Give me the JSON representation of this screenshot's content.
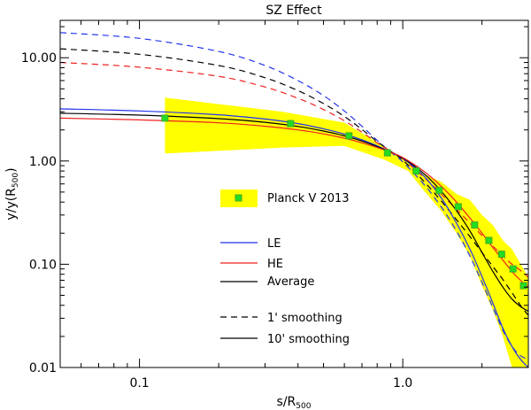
{
  "chart_data": {
    "type": "line",
    "title": "SZ Effect",
    "xlabel": "s/R",
    "xlabel_sub": "500",
    "ylabel": "y/y(R",
    "ylabel_sub": "500",
    "ylabel_end": ")",
    "xscale": "log",
    "yscale": "log",
    "xlim": [
      0.05,
      3.0
    ],
    "ylim": [
      0.01,
      23
    ],
    "x_ticks": [
      {
        "value": 0.1,
        "label": "0.1"
      },
      {
        "value": 1.0,
        "label": "1.0"
      }
    ],
    "y_ticks": [
      {
        "value": 0.01,
        "label": "0.01"
      },
      {
        "value": 0.1,
        "label": "0.10"
      },
      {
        "value": 1.0,
        "label": "1.00"
      },
      {
        "value": 10.0,
        "label": "10.00"
      }
    ],
    "colors": {
      "LE": "#2233ee",
      "HE": "#ee2222",
      "Average": "#000000",
      "band": "#ffff00",
      "points": "#22dd22",
      "point_edge": "#44aa22"
    },
    "observations": {
      "name": "Planck V 2013",
      "band": [
        {
          "x": 0.125,
          "lo": 1.18,
          "hi": 4.1
        },
        {
          "x": 0.35,
          "lo": 1.35,
          "hi": 3.0
        },
        {
          "x": 0.6,
          "lo": 1.4,
          "hi": 2.35
        },
        {
          "x": 0.85,
          "lo": 1.03,
          "hi": 1.38
        },
        {
          "x": 1.05,
          "lo": 0.8,
          "hi": 0.98
        },
        {
          "x": 1.2,
          "lo": 0.52,
          "hi": 0.75
        },
        {
          "x": 1.4,
          "lo": 0.33,
          "hi": 0.63
        },
        {
          "x": 1.6,
          "lo": 0.2,
          "hi": 0.48
        },
        {
          "x": 1.8,
          "lo": 0.12,
          "hi": 0.42
        },
        {
          "x": 2.0,
          "lo": 0.062,
          "hi": 0.3
        },
        {
          "x": 2.2,
          "lo": 0.036,
          "hi": 0.24
        },
        {
          "x": 2.4,
          "lo": 0.02,
          "hi": 0.17
        },
        {
          "x": 2.6,
          "lo": 0.01,
          "hi": 0.14
        },
        {
          "x": 3.0,
          "lo": 0.01,
          "hi": 0.075
        }
      ],
      "points": [
        {
          "x": 0.125,
          "y": 2.6
        },
        {
          "x": 0.375,
          "y": 2.3
        },
        {
          "x": 0.625,
          "y": 1.75
        },
        {
          "x": 0.875,
          "y": 1.2
        },
        {
          "x": 1.125,
          "y": 0.8
        },
        {
          "x": 1.375,
          "y": 0.52
        },
        {
          "x": 1.625,
          "y": 0.36
        },
        {
          "x": 1.875,
          "y": 0.24
        },
        {
          "x": 2.125,
          "y": 0.17
        },
        {
          "x": 2.375,
          "y": 0.125
        },
        {
          "x": 2.625,
          "y": 0.09
        },
        {
          "x": 2.875,
          "y": 0.062
        }
      ]
    },
    "x": [
      0.05,
      0.1,
      0.2,
      0.3,
      0.4,
      0.5,
      0.6,
      0.7,
      0.8,
      0.9,
      1.0,
      1.2,
      1.4,
      1.6,
      1.8,
      2.0,
      2.2,
      2.4,
      2.6,
      2.8,
      3.0
    ],
    "series": [
      {
        "name": "LE 1' smoothing",
        "model": "LE",
        "smoothing": "1'",
        "values": [
          17.5,
          15.4,
          11.5,
          8.4,
          6.0,
          4.3,
          3.05,
          2.17,
          1.58,
          1.22,
          0.98,
          0.6,
          0.36,
          0.21,
          0.12,
          0.067,
          0.038,
          0.023,
          0.016,
          0.013,
          0.012
        ]
      },
      {
        "name": "Average 1' smoothing",
        "model": "Average",
        "smoothing": "1'",
        "values": [
          12.2,
          10.8,
          8.4,
          6.4,
          4.8,
          3.6,
          2.7,
          2.02,
          1.54,
          1.24,
          1.02,
          0.64,
          0.41,
          0.27,
          0.185,
          0.13,
          0.095,
          0.071,
          0.053,
          0.04,
          0.032
        ]
      },
      {
        "name": "HE 1' smoothing",
        "model": "HE",
        "smoothing": "1'",
        "values": [
          9.0,
          8.1,
          6.6,
          5.2,
          4.05,
          3.15,
          2.45,
          1.9,
          1.5,
          1.24,
          1.05,
          0.7,
          0.48,
          0.34,
          0.25,
          0.19,
          0.15,
          0.12,
          0.1,
          0.087,
          0.075
        ]
      },
      {
        "name": "LE 10' smoothing",
        "model": "LE",
        "smoothing": "10'",
        "values": [
          3.2,
          3.05,
          2.8,
          2.55,
          2.3,
          2.05,
          1.82,
          1.6,
          1.4,
          1.22,
          1.06,
          0.72,
          0.44,
          0.25,
          0.14,
          0.076,
          0.042,
          0.024,
          0.016,
          0.012,
          0.01
        ]
      },
      {
        "name": "Average 10' smoothing",
        "model": "Average",
        "smoothing": "10'",
        "values": [
          2.9,
          2.78,
          2.57,
          2.37,
          2.16,
          1.95,
          1.75,
          1.56,
          1.38,
          1.22,
          1.07,
          0.76,
          0.51,
          0.33,
          0.21,
          0.13,
          0.085,
          0.06,
          0.046,
          0.039,
          0.035
        ]
      },
      {
        "name": "HE 10' smoothing",
        "model": "HE",
        "smoothing": "10'",
        "values": [
          2.6,
          2.5,
          2.34,
          2.17,
          2.0,
          1.83,
          1.66,
          1.5,
          1.35,
          1.21,
          1.08,
          0.8,
          0.57,
          0.4,
          0.28,
          0.2,
          0.145,
          0.11,
          0.085,
          0.07,
          0.06
        ]
      }
    ],
    "legend": {
      "placement": "center-left",
      "planck_label": "Planck V 2013",
      "model_entries": [
        {
          "label": "LE",
          "color": "#2233ee"
        },
        {
          "label": "HE",
          "color": "#ee2222"
        },
        {
          "label": "Average",
          "color": "#000000"
        }
      ],
      "style_entries": [
        {
          "label": "1' smoothing",
          "dash": true
        },
        {
          "label": "10' smoothing",
          "dash": false
        }
      ]
    }
  }
}
